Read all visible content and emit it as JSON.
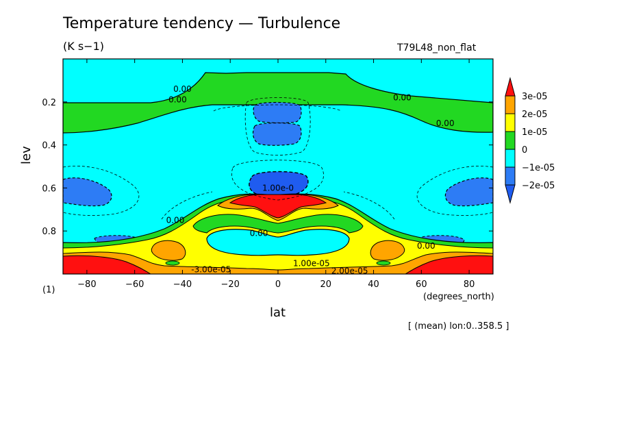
{
  "header": {
    "title": "Temperature tendency — Turbulence",
    "units": "(K s−1)",
    "run_id": "T79L48_non_flat",
    "x_units": "(degrees_north)",
    "y_units": "(1)",
    "footnote": "[ (mean) lon:0..358.5 ]"
  },
  "colors": {
    "neg2": "#2d7cf5",
    "neg1": "#00ffff",
    "zero": "#22d822",
    "pos1": "#ffff00",
    "pos2": "#ffa500",
    "pos3": "#ff1010",
    "navy_blue": "#1f5cf0"
  },
  "chart_data": {
    "type": "heatmap",
    "title": "Temperature tendency — Turbulence",
    "xlabel": "lat",
    "ylabel": "lev",
    "xlim": [
      -90,
      90
    ],
    "ylim": [
      1.0,
      0.0
    ],
    "x_ticks": [
      -80,
      -60,
      -40,
      -20,
      0,
      20,
      40,
      60,
      80
    ],
    "y_ticks": [
      0.2,
      0.4,
      0.6,
      0.8
    ],
    "colorbar": {
      "levels": [
        "3e-05",
        "2e-05",
        "1e-05",
        "0",
        "−1e-05",
        "−2e-05"
      ],
      "bands": [
        {
          "name": "above 3e-05",
          "color": "#ff1010"
        },
        {
          "name": "2e-05 to 3e-05",
          "color": "#ffa500"
        },
        {
          "name": "1e-05 to 2e-05",
          "color": "#ffff00"
        },
        {
          "name": "0 to 1e-05",
          "color": "#22d822"
        },
        {
          "name": "-1e-05 to 0",
          "color": "#00ffff"
        },
        {
          "name": "-2e-05 to -1e-05",
          "color": "#2d7cf5"
        },
        {
          "name": "below -2e-05",
          "color": "#1f5cf0"
        }
      ]
    },
    "contour_labels": [
      {
        "text": "0.00",
        "lat": -40,
        "lev": 0.14
      },
      {
        "text": "0.00",
        "lat": -42,
        "lev": 0.19
      },
      {
        "text": "0.00",
        "lat": 52,
        "lev": 0.18
      },
      {
        "text": "0.00",
        "lat": 70,
        "lev": 0.3
      },
      {
        "text": "1.00e-0",
        "lat": 0,
        "lev": 0.6
      },
      {
        "text": "0.00",
        "lat": -43,
        "lev": 0.75
      },
      {
        "text": "0.00",
        "lat": -8,
        "lev": 0.81
      },
      {
        "text": "0.00",
        "lat": 62,
        "lev": 0.87
      },
      {
        "text": "1.00e-05",
        "lat": 14,
        "lev": 0.95
      },
      {
        "text": "2.00e-05",
        "lat": 30,
        "lev": 0.985
      },
      {
        "text": "-3.00e-05",
        "lat": -28,
        "lev": 0.98
      }
    ]
  }
}
